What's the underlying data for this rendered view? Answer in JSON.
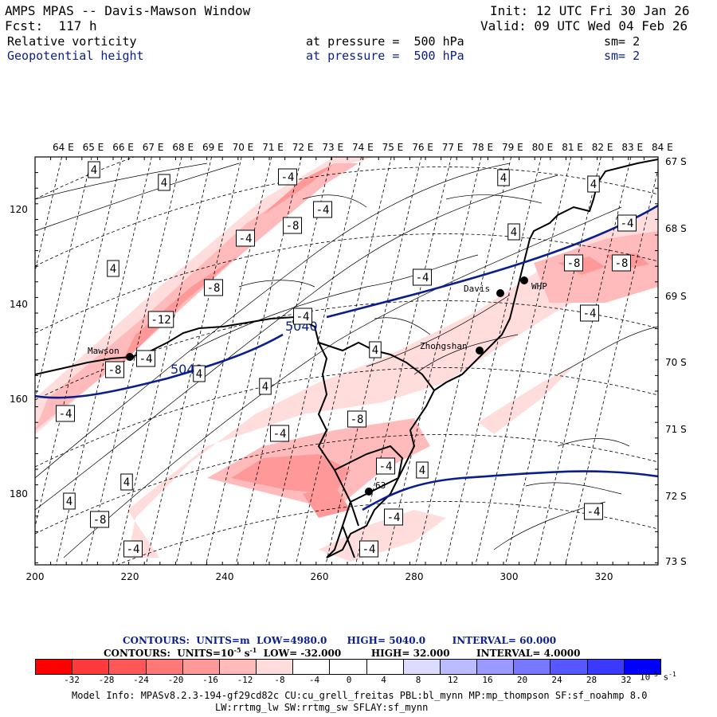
{
  "header": {
    "left_line1": "AMPS MPAS -- Davis-Mawson Window",
    "left_line2": "Fcst:  117 h",
    "right_line1": "Init: 12 UTC Fri 30 Jan 26",
    "right_line2": "Valid: 09 UTC Wed 04 Feb 26",
    "field1": "Relative vorticity",
    "field1_level": "at pressure =  500 hPa",
    "field1_sm": "sm= 2",
    "field2": "Geopotential height",
    "field2_level": "at pressure =  500 hPa",
    "field2_sm": "sm= 2"
  },
  "map": {
    "top_lon_labels": [
      "64 E",
      "65 E",
      "66 E",
      "67 E",
      "68 E",
      "69 E",
      "70 E",
      "71 E",
      "72 E",
      "73 E",
      "74 E",
      "75 E",
      "76 E",
      "77 E",
      "78 E",
      "79 E",
      "80 E",
      "81 E",
      "82 E",
      "83 E",
      "84 E"
    ],
    "right_lat_labels": [
      "67 S",
      "68 S",
      "69 S",
      "70 S",
      "71 S",
      "72 S",
      "73 S"
    ],
    "left_y_labels": [
      "120",
      "140",
      "160",
      "180"
    ],
    "bottom_x_labels": [
      "200",
      "220",
      "240",
      "260",
      "280",
      "300",
      "320"
    ],
    "stations": [
      {
        "name": "Mawson"
      },
      {
        "name": "Davis"
      },
      {
        "name": "WHP"
      },
      {
        "name": "Zhongshan"
      },
      {
        "name": "63"
      }
    ],
    "height_contour_labels": [
      "5040",
      "5040"
    ],
    "vorticity_labels": [
      "4",
      "4",
      "4",
      "-4",
      "-4",
      "-8",
      "-4",
      "4",
      "-8",
      "-12",
      "-4",
      "-8",
      "4",
      "-4",
      "4",
      "-4",
      "4",
      "4",
      "4",
      "-4",
      "-4",
      "-8",
      "-8",
      "4",
      "-4",
      "-8",
      "-4",
      "4",
      "4",
      "-8",
      "-4",
      "-4",
      "-4",
      "-4",
      "-4"
    ]
  },
  "footer": {
    "contours1_prefix": "CONTOURS:  UNITS=m  LOW=",
    "contours1_low": "4980.0",
    "contours1_high_label": "HIGH=",
    "contours1_high": "5040.0",
    "contours1_int_label": "INTERVAL=",
    "contours1_int": "60.000",
    "contours2_prefix": "CONTOURS:  UNITS=10",
    "contours2_exp": "-5",
    "contours2_unit": " s",
    "contours2_unit_exp": "-1",
    "contours2_low_label": "LOW=",
    "contours2_low": "-32.000",
    "contours2_high_label": "HIGH=",
    "contours2_high": "32.000",
    "contours2_int_label": "INTERVAL=",
    "contours2_int": "4.0000",
    "colorbar_labels": [
      "-32",
      "-28",
      "-24",
      "-20",
      "-16",
      "-12",
      "-8",
      "-4",
      "0",
      "4",
      "8",
      "12",
      "16",
      "20",
      "24",
      "28",
      "32"
    ],
    "colorbar_unit": "10",
    "colorbar_unit_exp": "-5",
    "colorbar_unit_s": "s",
    "colorbar_unit_s_exp": "-1",
    "model_info_1": "Model Info: MPASv8.2.3-194-gf29cd82c CU:cu_grell_freitas PBL:bl_mynn MP:mp_thompson SF:sf_noahmp 8.0",
    "model_info_2": "LW:rrtmg_lw SW:rrtmg_sw SFLAY:sf_mynn"
  },
  "colors": {
    "height_contour": "#0a1e8c",
    "colorbar": [
      "#ff0000",
      "#ff3a3a",
      "#ff5757",
      "#ff7777",
      "#ff9999",
      "#ffbbbb",
      "#ffdddd",
      "#ffffff",
      "#ffffff",
      "#ffffff",
      "#dcdcff",
      "#bbbbff",
      "#9999ff",
      "#7777ff",
      "#5757ff",
      "#3a3aff",
      "#0000ff"
    ]
  }
}
